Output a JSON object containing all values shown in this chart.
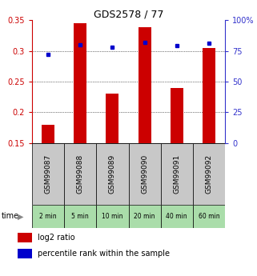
{
  "title": "GDS2578 / 77",
  "samples": [
    "GSM99087",
    "GSM99088",
    "GSM99089",
    "GSM99090",
    "GSM99091",
    "GSM99092"
  ],
  "time_labels": [
    "2 min",
    "5 min",
    "10 min",
    "20 min",
    "40 min",
    "60 min"
  ],
  "log2_ratio": [
    0.18,
    0.345,
    0.23,
    0.338,
    0.24,
    0.305
  ],
  "percentile_rank": [
    0.72,
    0.8,
    0.78,
    0.82,
    0.79,
    0.81
  ],
  "log2_ylim": [
    0.15,
    0.35
  ],
  "log2_yticks": [
    0.15,
    0.2,
    0.25,
    0.3,
    0.35
  ],
  "percentile_yticks": [
    0,
    25,
    50,
    75,
    100
  ],
  "bar_color": "#cc0000",
  "dot_color": "#0000cc",
  "bar_width": 0.4,
  "background_label": "#c8c8c8",
  "background_time": "#aaddaa",
  "left_axis_color": "#cc0000",
  "right_axis_color": "#3333cc",
  "legend_bar_label": "log2 ratio",
  "legend_dot_label": "percentile rank within the sample"
}
